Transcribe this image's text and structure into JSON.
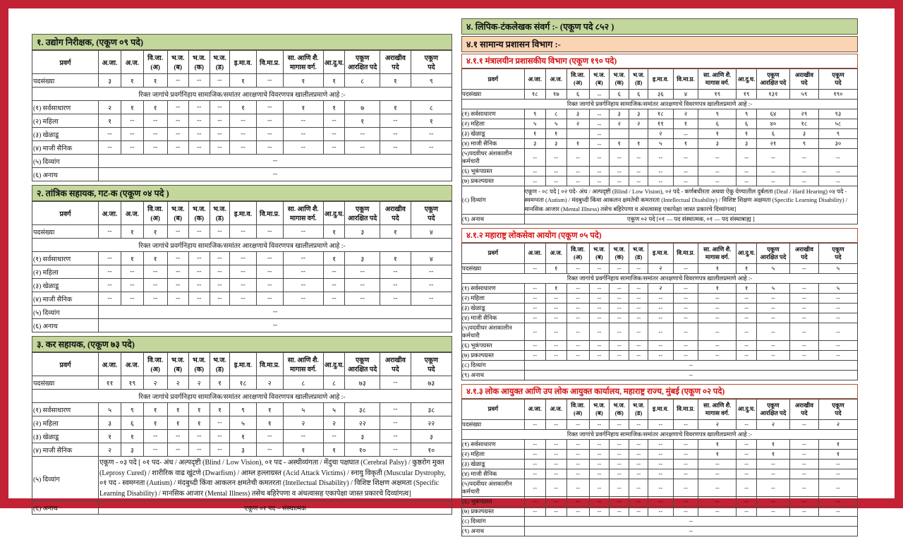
{
  "colors": {
    "frame": "#c22234",
    "green_band": "#c3d69b",
    "orange_band": "#fbd4b4",
    "red_title": "#d80f0f",
    "grid_line": "#4a4a4a"
  },
  "columns": [
    "प्रवर्ग",
    "अ.जा.",
    "अ.ज.",
    "वि.जा.\n(अ)",
    "भ.ज.\n(ब)",
    "भ.ज.\n(क)",
    "भ.ज.\n(ड)",
    "इ.मा.व.",
    "वि.मा.प्र.",
    "सा. आणि शै.\nमागास वर्ग.",
    "आ.दु.घ.",
    "एकूण\nआरक्षित पदे",
    "अराखीव\nपदे",
    "एकूण\nपदे"
  ],
  "note": "रिक्त जागांचे प्रवर्गनिहाय सामाजिक/समांतर आरक्षणाचे विवरणपत्र खालीलप्रमाणे आहे :-",
  "left_page": {
    "tables": [
      {
        "name": "table-1-udyog-nirikshak",
        "title": "१. उद्योग निरीक्षक, (एकूण ०९ पदे)",
        "title_type": "green",
        "rows": [
          {
            "type": "data",
            "label": "पदसंख्या",
            "values": [
              "३",
              "१",
              "१",
              "--",
              "--",
              "--",
              "१",
              "--",
              "१",
              "१",
              "८",
              "१",
              "९"
            ]
          },
          {
            "type": "note"
          },
          {
            "type": "data",
            "label": "(१) सर्वसाधारण",
            "values": [
              "२",
              "१",
              "१",
              "--",
              "--",
              "--",
              "१",
              "--",
              "१",
              "१",
              "७",
              "१",
              "८"
            ]
          },
          {
            "type": "data",
            "label": "(२) महिला",
            "values": [
              "१",
              "--",
              "--",
              "--",
              "--",
              "--",
              "--",
              "--",
              "--",
              "--",
              "१",
              "--",
              "१"
            ]
          },
          {
            "type": "data",
            "label": "(३) खेळाडू",
            "values": [
              "--",
              "--",
              "--",
              "--",
              "--",
              "--",
              "--",
              "--",
              "--",
              "--",
              "--",
              "--",
              "--"
            ]
          },
          {
            "type": "data",
            "label": "(४) माजी सैनिक",
            "values": [
              "--",
              "--",
              "--",
              "--",
              "--",
              "--",
              "--",
              "--",
              "--",
              "--",
              "--",
              "--",
              "--"
            ]
          },
          {
            "type": "span",
            "label": "(५) दिव्यांग",
            "text": "--"
          },
          {
            "type": "span",
            "label": "(६) अनाथ",
            "text": "--"
          }
        ]
      },
      {
        "name": "table-2-tantrik-sahayak",
        "title": "२.  तांत्रिक सहायक, गट-क (एकूण ०४ पदे )",
        "title_type": "green",
        "rows": [
          {
            "type": "data",
            "label": "पदसंख्या",
            "values": [
              "--",
              "१",
              "१",
              "--",
              "--",
              "--",
              "--",
              "--",
              "--",
              "१",
              "३",
              "१",
              "४"
            ]
          },
          {
            "type": "note"
          },
          {
            "type": "data",
            "label": "(१) सर्वसाधारण",
            "values": [
              "--",
              "१",
              "१",
              "--",
              "--",
              "--",
              "--",
              "--",
              "--",
              "१",
              "३",
              "१",
              "४"
            ]
          },
          {
            "type": "data",
            "label": "(२) महिला",
            "values": [
              "--",
              "--",
              "--",
              "--",
              "--",
              "--",
              "--",
              "--",
              "--",
              "--",
              "--",
              "--",
              "--"
            ]
          },
          {
            "type": "data",
            "label": "(३) खेळाडू",
            "values": [
              "--",
              "--",
              "--",
              "--",
              "--",
              "--",
              "--",
              "--",
              "--",
              "--",
              "--",
              "--",
              "--"
            ]
          },
          {
            "type": "data",
            "label": "(४) माजी सैनिक",
            "values": [
              "--",
              "--",
              "--",
              "--",
              "--",
              "--",
              "--",
              "--",
              "--",
              "--",
              "--",
              "--",
              "--"
            ]
          },
          {
            "type": "span",
            "label": "(५) दिव्यांग",
            "text": "--"
          },
          {
            "type": "span",
            "label": "(६) अनाथ",
            "text": "--"
          }
        ]
      },
      {
        "name": "table-3-kar-sahayak",
        "title": "३. कर सहायक, (एकूण ७३ पदे)",
        "title_type": "green",
        "rows": [
          {
            "type": "data",
            "label": "पदसंख्या",
            "values": [
              "११",
              "१९",
              "२",
              "२",
              "२",
              "१",
              "१८",
              "२",
              "८",
              "८",
              "७३",
              "--",
              "७३"
            ]
          },
          {
            "type": "note"
          },
          {
            "type": "data",
            "label": "(१) सर्वसाधारण",
            "values": [
              "५",
              "९",
              "१",
              "१",
              "१",
              "१",
              "९",
              "१",
              "५",
              "५",
              "३८",
              "--",
              "३८"
            ]
          },
          {
            "type": "data",
            "label": "(२) महिला",
            "values": [
              "३",
              "६",
              "१",
              "१",
              "१",
              "--",
              "५",
              "१",
              "२",
              "२",
              "२२",
              "--",
              "२२"
            ]
          },
          {
            "type": "data",
            "label": "(३) खेळाडू",
            "values": [
              "१",
              "१",
              "--",
              "--",
              "--",
              "--",
              "१",
              "--",
              "--",
              "--",
              "३",
              "--",
              "३"
            ]
          },
          {
            "type": "data",
            "label": "(४) माजी सैनिक",
            "values": [
              "२",
              "३",
              "--",
              "--",
              "--",
              "--",
              "३",
              "--",
              "१",
              "१",
              "१०",
              "--",
              "१०"
            ]
          },
          {
            "type": "span",
            "label": "(५) दिव्यांग",
            "align": "left",
            "text": "एकूण - ०३ पदे [ ०१ पद- अंध / अल्पदृष्टी (Blind / Low Vision), ०१ पद - अस्थीव्यंगता / मेंदुचा पक्षघात (Cerebral Palsy) / कुष्ठरोग मुक्त (Leprosy Cured) / शारीरिक वाढ खुंटणे (Dwarfism) / आम्ल हल्लाग्रस्त (Acid Attack Victims) / स्नायु विकृती (Muscular Dystrophy, ०१ पद - स्वमग्नता (Autism) / मंदबुध्दी किंवा आकलन क्षमतेची कमतरता (Intellectual Disability) / विशिष्ट शिक्षण अक्षमता (Specific Learning Disability) / मानसिक आजार (Mental Illness) तसेच बहिरेपणा व अंधत्वासह एकापेक्षा जास्त प्रकारचे दिव्यांगत्व]"
          },
          {
            "type": "span",
            "label": "(६) अनाथ",
            "text": "एकूण ०१ पद – संस्थात्मक"
          }
        ]
      }
    ]
  },
  "right_page": {
    "band_green": "४. लिपिक-टंकलेखक संवर्ग :- (एकूण पदे ८५२ )",
    "band_orange": "४.१ सामान्य प्रशासन विभाग :-",
    "tables": [
      {
        "name": "table-4-1-1-mantralayin-vibhag",
        "title": "४.१.१ मंत्रालयीन प्रशासकीय विभाग (एकूण १९० पदे)",
        "title_type": "red",
        "rows": [
          {
            "type": "data",
            "label": "पदसंख्या",
            "values": [
              "१८",
              "१७",
              "६",
              "--",
              "६",
              "६",
              "३६",
              "४",
              "१९",
              "१९",
              "१३१",
              "५९",
              "१९०"
            ]
          },
          {
            "type": "note"
          },
          {
            "type": "data",
            "label": "(१) सर्वसाधारण",
            "values": [
              "९",
              "८",
              "३",
              "--",
              "३",
              "३",
              "१८",
              "२",
              "९",
              "९",
              "६४",
              "२९",
              "९३"
            ]
          },
          {
            "type": "data",
            "label": "(२) महिला",
            "values": [
              "५",
              "५",
              "२",
              "--",
              "२",
              "२",
              "११",
              "१",
              "६",
              "६",
              "४०",
              "१८",
              "५८"
            ]
          },
          {
            "type": "data",
            "label": "(३) खेळाडू",
            "values": [
              "१",
              "१",
              "",
              "--",
              "",
              "",
              "२",
              "--",
              "१",
              "१",
              "६",
              "३",
              "९"
            ]
          },
          {
            "type": "data",
            "label": "(४) माजी सैनिक",
            "values": [
              "३",
              "३",
              "१",
              "--",
              "१",
              "१",
              "५",
              "१",
              "३",
              "३",
              "२१",
              "९",
              "३०"
            ]
          },
          {
            "type": "data",
            "label": "(५)पदवीधर अंशकालीन कर्मचारी",
            "values": [
              "--",
              "--",
              "--",
              "--",
              "--",
              "--",
              "--",
              "--",
              "--",
              "--",
              "--",
              "--",
              "--"
            ]
          },
          {
            "type": "data",
            "label": "(६) भूकंपग्रस्त",
            "values": [
              "--",
              "--",
              "--",
              "--",
              "--",
              "--",
              "--",
              "--",
              "--",
              "--",
              "--",
              "--",
              "--"
            ]
          },
          {
            "type": "data",
            "label": "(७) प्रकल्पग्रस्त",
            "values": [
              "--",
              "--",
              "--",
              "--",
              "--",
              "--",
              "--",
              "--",
              "--",
              "--",
              "--",
              "--",
              "--"
            ]
          },
          {
            "type": "span",
            "label": "(८) दिव्यांग",
            "align": "left",
            "text": "एकूण - ०८ पदे [ ०२ पदे- अंध / अल्पदृष्टी (Blind / Low Vision), ०२ पदे - कर्णबधीरता अथवा ऐकू येण्यातील दुर्बलता (Deaf / Hard Hearing) ०४ पदे - स्वमग्नता (Autism) / मंदबुध्दी किंवा आकलन क्षमतेची कमतरता (Intellectual Disability) / विशिष्ट शिक्षण अक्षमता (Specific Learning Disability) / मानसिक आजार (Mental Illness) तसेच बहिरेपणा व अंधत्वासह एकापेक्षा जास्त प्रकारचे दिव्यांगत्व]"
          },
          {
            "type": "span",
            "label": "(९) अनाथ",
            "text": "एकूण ०२ पदे [०१ — पद संस्थात्मक, ०१ — पद  संस्थाबाह्य ]"
          }
        ]
      },
      {
        "name": "table-4-1-2-mpsc",
        "title": "४.१.२ महाराष्ट्र लोकसेवा आयोग (एकूण  ०५ पदे)",
        "title_type": "red",
        "rows": [
          {
            "type": "data",
            "label": "पदसंख्या",
            "values": [
              "--",
              "१",
              "--",
              "--",
              "--",
              "--",
              "२",
              "--",
              "१",
              "१",
              "५",
              "--",
              "५"
            ]
          },
          {
            "type": "note"
          },
          {
            "type": "data",
            "label": "(१) सर्वसाधारण",
            "values": [
              "--",
              "१",
              "--",
              "--",
              "--",
              "--",
              "२",
              "--",
              "१",
              "१",
              "५",
              "--",
              "५"
            ]
          },
          {
            "type": "data",
            "label": "(२) महिला",
            "values": [
              "--",
              "--",
              "--",
              "--",
              "--",
              "--",
              "--",
              "--",
              "--",
              "--",
              "--",
              "--",
              "--"
            ]
          },
          {
            "type": "data",
            "label": "(३) खेळाडू",
            "values": [
              "--",
              "--",
              "--",
              "--",
              "--",
              "--",
              "--",
              "--",
              "--",
              "--",
              "--",
              "--",
              "--"
            ]
          },
          {
            "type": "data",
            "label": "(४) माजी सैनिक",
            "values": [
              "--",
              "--",
              "--",
              "--",
              "--",
              "--",
              "--",
              "--",
              "--",
              "--",
              "--",
              "--",
              "--"
            ]
          },
          {
            "type": "data",
            "label": "(५)पदवीधर अंशकालीन कर्मचारी",
            "values": [
              "--",
              "--",
              "--",
              "--",
              "--",
              "--",
              "--",
              "--",
              "--",
              "--",
              "--",
              "--",
              "--"
            ]
          },
          {
            "type": "data",
            "label": "(६) भूकंपग्रस्त",
            "values": [
              "--",
              "--",
              "--",
              "--",
              "--",
              "--",
              "--",
              "--",
              "--",
              "--",
              "--",
              "--",
              "--"
            ]
          },
          {
            "type": "data",
            "label": "(७) प्रकल्पग्रस्त",
            "values": [
              "--",
              "--",
              "--",
              "--",
              "--",
              "--",
              "--",
              "--",
              "--",
              "--",
              "--",
              "--",
              "--"
            ]
          },
          {
            "type": "span",
            "label": "(८) दिव्यांग",
            "text": "--"
          },
          {
            "type": "span",
            "label": "(९) अनाथ",
            "text": "--"
          }
        ]
      },
      {
        "name": "table-4-1-3-lok-ayukta",
        "title": "४.१.३ लोक आयुक्त आणि उप लोक आयुक्त कार्यालय, महाराष्ट्र राज्य, मुंबई (एकूण  ०२ पदे)",
        "title_type": "red",
        "rows": [
          {
            "type": "data",
            "label": "पदसंख्या",
            "values": [
              "--",
              "--",
              "--",
              "--",
              "--",
              "--",
              "--",
              "--",
              "२",
              "--",
              "२",
              "--",
              "२"
            ]
          },
          {
            "type": "note"
          },
          {
            "type": "data",
            "label": "(१) सर्वसाधारण",
            "values": [
              "--",
              "--",
              "--",
              "--",
              "--",
              "--",
              "--",
              "--",
              "१",
              "--",
              "१",
              "--",
              "१"
            ]
          },
          {
            "type": "data",
            "label": "(२) महिला",
            "values": [
              "--",
              "--",
              "--",
              "--",
              "--",
              "--",
              "--",
              "--",
              "१",
              "--",
              "१",
              "--",
              "१"
            ]
          },
          {
            "type": "data",
            "label": "(३) खेळाडू",
            "values": [
              "--",
              "--",
              "--",
              "--",
              "--",
              "--",
              "--",
              "--",
              "--",
              "--",
              "--",
              "--",
              "--"
            ]
          },
          {
            "type": "data",
            "label": "(४) माजी सैनिक",
            "values": [
              "--",
              "--",
              "--",
              "--",
              "--",
              "--",
              "--",
              "--",
              "--",
              "--",
              "--",
              "--",
              "--"
            ]
          },
          {
            "type": "data",
            "label": "(५)पदवीधर अंशकालीन कर्मचारी",
            "values": [
              "--",
              "--",
              "--",
              "--",
              "--",
              "--",
              "--",
              "--",
              "--",
              "--",
              "--",
              "--",
              "--"
            ]
          },
          {
            "type": "data",
            "label": "(६) भूकंपग्रस्त",
            "values": [
              "--",
              "--",
              "--",
              "--",
              "--",
              "--",
              "--",
              "--",
              "--",
              "--",
              "--",
              "--",
              "--"
            ]
          },
          {
            "type": "data",
            "label": "(७) प्रकल्पग्रस्त",
            "values": [
              "--",
              "--",
              "--",
              "--",
              "--",
              "--",
              "--",
              "--",
              "--",
              "--",
              "--",
              "--",
              "--"
            ]
          },
          {
            "type": "span",
            "label": "(८) दिव्यांग",
            "text": "--"
          },
          {
            "type": "span",
            "label": "(९) अनाथ",
            "text": "--"
          }
        ]
      }
    ]
  }
}
